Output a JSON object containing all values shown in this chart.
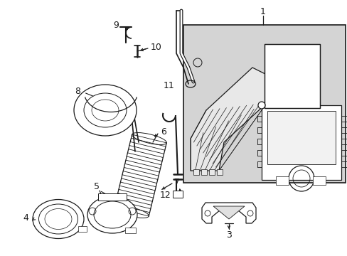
{
  "bg_color": "#ffffff",
  "line_color": "#1a1a1a",
  "box_bg": "#d8d8d8",
  "font_size": 8.5,
  "figsize": [
    4.89,
    3.6
  ],
  "dpi": 100
}
